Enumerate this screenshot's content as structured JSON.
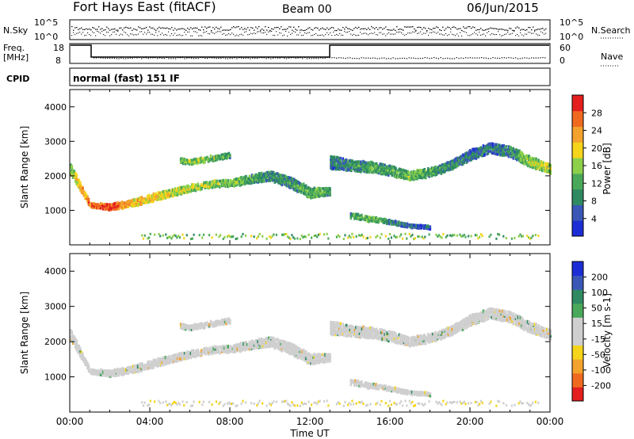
{
  "header": {
    "station": "Fort Hays East (fitACF)",
    "beam": "Beam 00",
    "date": "06/Jun/2015"
  },
  "top_panels": {
    "nsky_label": "N.Sky",
    "nsearch_label": "N.Search",
    "left_ticks": [
      "10^5",
      "10^0"
    ],
    "right_ticks": [
      "10^5",
      "10^0"
    ],
    "freq_label": "Freq.",
    "freq_unit": "[MHz]",
    "freq_ticks": [
      "18",
      "8"
    ],
    "nave_label": "Nave",
    "nave_ticks": [
      "60",
      "0"
    ],
    "cpid_label": "CPID",
    "cpid_text": "normal (fast) 151 IF"
  },
  "colors": {
    "power": [
      "#1d2dd6",
      "#3a57b7",
      "#2f8a62",
      "#4aa85a",
      "#8dd04a",
      "#f5d41a",
      "#f3a22d",
      "#ef6a1f",
      "#e41e1e"
    ],
    "velocity": [
      "#e41e1e",
      "#ef6a1f",
      "#f3a22d",
      "#f5d41a",
      "#cfcfcf",
      "#cfcfcf",
      "#4aa85a",
      "#2f8a62",
      "#3a57b7",
      "#1d2dd6"
    ]
  },
  "chart_data": [
    {
      "type": "heatmap",
      "name": "power",
      "xlabel": "Time UT",
      "ylabel": "Slant Range [km]",
      "xlim": [
        0,
        24
      ],
      "ylim": [
        0,
        4500
      ],
      "y_ticks": [
        "1000",
        "2000",
        "3000",
        "4000"
      ],
      "colorbar": {
        "label": "Power [dB]",
        "ticks": [
          "4",
          "8",
          "12",
          "16",
          "20",
          "24",
          "28"
        ],
        "range": [
          0,
          30
        ]
      },
      "echo_bands": [
        {
          "t": [
            0.0,
            1.0,
            2.0,
            3.0,
            4.0,
            5.0,
            6.0,
            7.0,
            8.0,
            9.0,
            10.0,
            11.0,
            12.0,
            13.0
          ],
          "range_km": [
            2200,
            1150,
            1100,
            1200,
            1350,
            1500,
            1650,
            1750,
            1800,
            1900,
            2000,
            1800,
            1500,
            1550
          ],
          "width_km": [
            300,
            150,
            180,
            200,
            220,
            220,
            200,
            200,
            200,
            250,
            280,
            300,
            300,
            200
          ],
          "power_db": [
            16,
            26,
            28,
            22,
            20,
            18,
            17,
            16,
            15,
            12,
            10,
            10,
            14,
            12
          ]
        },
        {
          "t": [
            13.0,
            14.0,
            15.0,
            16.0,
            17.0,
            18.0,
            19.0,
            20.0,
            21.0,
            22.0,
            23.0,
            24.0
          ],
          "range_km": [
            2400,
            2300,
            2250,
            2150,
            2000,
            2100,
            2300,
            2600,
            2800,
            2700,
            2400,
            2200
          ],
          "width_km": [
            400,
            300,
            300,
            300,
            250,
            250,
            250,
            300,
            300,
            300,
            300,
            250
          ],
          "power_db": [
            8,
            10,
            12,
            12,
            14,
            12,
            10,
            8,
            8,
            10,
            16,
            18
          ]
        },
        {
          "t": [
            14.0,
            15.0,
            16.0,
            17.0,
            18.0
          ],
          "range_km": [
            850,
            750,
            650,
            550,
            500
          ],
          "width_km": [
            150,
            150,
            120,
            100,
            80
          ],
          "power_db": [
            12,
            14,
            10,
            8,
            6
          ]
        },
        {
          "t": [
            5.5,
            6.0,
            7.0,
            8.0
          ],
          "range_km": [
            2450,
            2400,
            2500,
            2600
          ],
          "width_km": [
            150,
            150,
            150,
            150
          ],
          "power_db": [
            14,
            16,
            14,
            12
          ]
        }
      ]
    },
    {
      "type": "heatmap",
      "name": "velocity",
      "xlabel": "Time UT",
      "ylabel": "Slant Range [km]",
      "xlim": [
        0,
        24
      ],
      "ylim": [
        0,
        4500
      ],
      "y_ticks": [
        "1000",
        "2000",
        "3000",
        "4000"
      ],
      "x_ticks": [
        "00:00",
        "04:00",
        "08:00",
        "12:00",
        "16:00",
        "20:00",
        "00:00"
      ],
      "colorbar": {
        "label": "Velocity [m s-1]",
        "ticks": [
          "-200",
          "-100",
          "-50",
          "-15",
          "15",
          "50",
          "100",
          "200"
        ],
        "range": [
          -250,
          250
        ]
      }
    }
  ]
}
